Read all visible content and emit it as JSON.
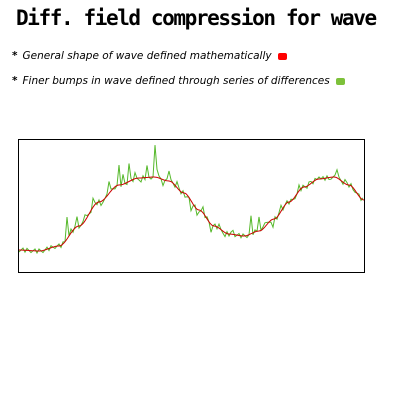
{
  "title": "Diff. field compression for wave",
  "bullets": [
    {
      "star": "*",
      "text": "General shape of wave defined mathematically",
      "color": "#ff0000"
    },
    {
      "star": "*",
      "text": "Finer bumps in wave defined through series of differences",
      "color": "#7dc13a"
    }
  ],
  "colors": {
    "smooth": "#cc0000",
    "detail": "#55b82a"
  }
}
